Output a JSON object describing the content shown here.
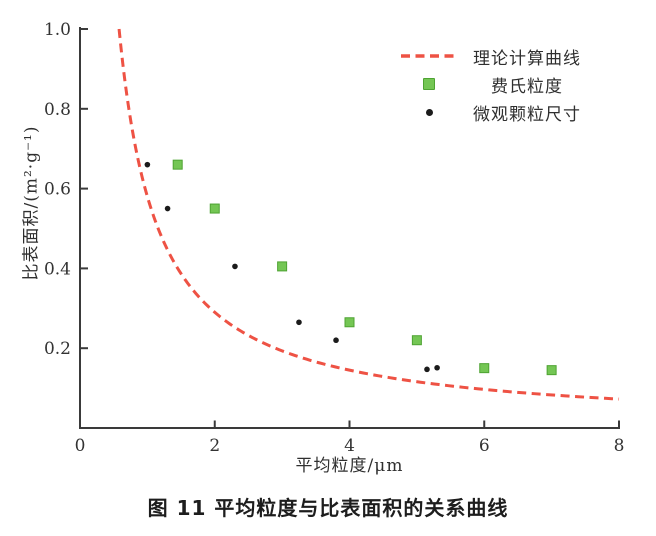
{
  "figure": {
    "caption": "图 11  平均粒度与比表面积的关系曲线"
  },
  "colors": {
    "curve_red": "#ee5244",
    "square_green_fill": "#74c654",
    "square_green_border": "#4ea332",
    "dot_black": "#1b1b1b",
    "axis": "#3a3a3a",
    "tick_text": "#333333"
  },
  "legend": {
    "items": [
      {
        "icon": "dashed-line",
        "label": "理论计算曲线"
      },
      {
        "icon": "green-square",
        "label": "费氏粒度"
      },
      {
        "icon": "black-dot",
        "label": "微观颗粒尺寸"
      }
    ]
  },
  "chart_data": {
    "type": "scatter",
    "title": "",
    "xlabel": "平均粒度/μm",
    "ylabel": "比表面积/(m²·g⁻¹)",
    "xlim": [
      0,
      8
    ],
    "ylim": [
      0,
      1.0
    ],
    "x_ticks": [
      0,
      2,
      4,
      6,
      8
    ],
    "x_tick_labels": [
      "0",
      "2",
      "4",
      "6",
      "8"
    ],
    "y_ticks": [
      0.2,
      0.4,
      0.6,
      0.8,
      1.0
    ],
    "y_tick_labels": [
      "0.2",
      "0.4",
      "0.6",
      "0.8",
      "1.0"
    ],
    "grid": false,
    "legend_position": "upper-right-inside",
    "series": [
      {
        "name": "理论计算曲线",
        "type": "line",
        "line_style": "dashed",
        "color": "#ee5244",
        "model": "y = 0.58 / x (clipped at y = 1.0)",
        "k": 0.58,
        "x_range": [
          0.58,
          8
        ],
        "sample_points": [
          [
            0.58,
            1.0
          ],
          [
            1.0,
            0.58
          ],
          [
            1.5,
            0.39
          ],
          [
            2.0,
            0.29
          ],
          [
            2.5,
            0.23
          ],
          [
            3.0,
            0.19
          ],
          [
            4.0,
            0.145
          ],
          [
            5.0,
            0.116
          ],
          [
            6.0,
            0.097
          ],
          [
            7.0,
            0.083
          ],
          [
            8.0,
            0.073
          ]
        ]
      },
      {
        "name": "费氏粒度",
        "type": "scatter",
        "marker": "square",
        "color": "#74c654",
        "points": [
          [
            1.45,
            0.66
          ],
          [
            2.0,
            0.55
          ],
          [
            3.0,
            0.405
          ],
          [
            4.0,
            0.265
          ],
          [
            5.0,
            0.22
          ],
          [
            6.0,
            0.15
          ],
          [
            7.0,
            0.145
          ]
        ]
      },
      {
        "name": "微观颗粒尺寸",
        "type": "scatter",
        "marker": "circle",
        "color": "#1b1b1b",
        "points": [
          [
            1.0,
            0.66
          ],
          [
            1.3,
            0.55
          ],
          [
            2.3,
            0.405
          ],
          [
            3.25,
            0.265
          ],
          [
            3.8,
            0.22
          ],
          [
            5.15,
            0.147
          ],
          [
            5.3,
            0.151
          ]
        ]
      }
    ]
  }
}
